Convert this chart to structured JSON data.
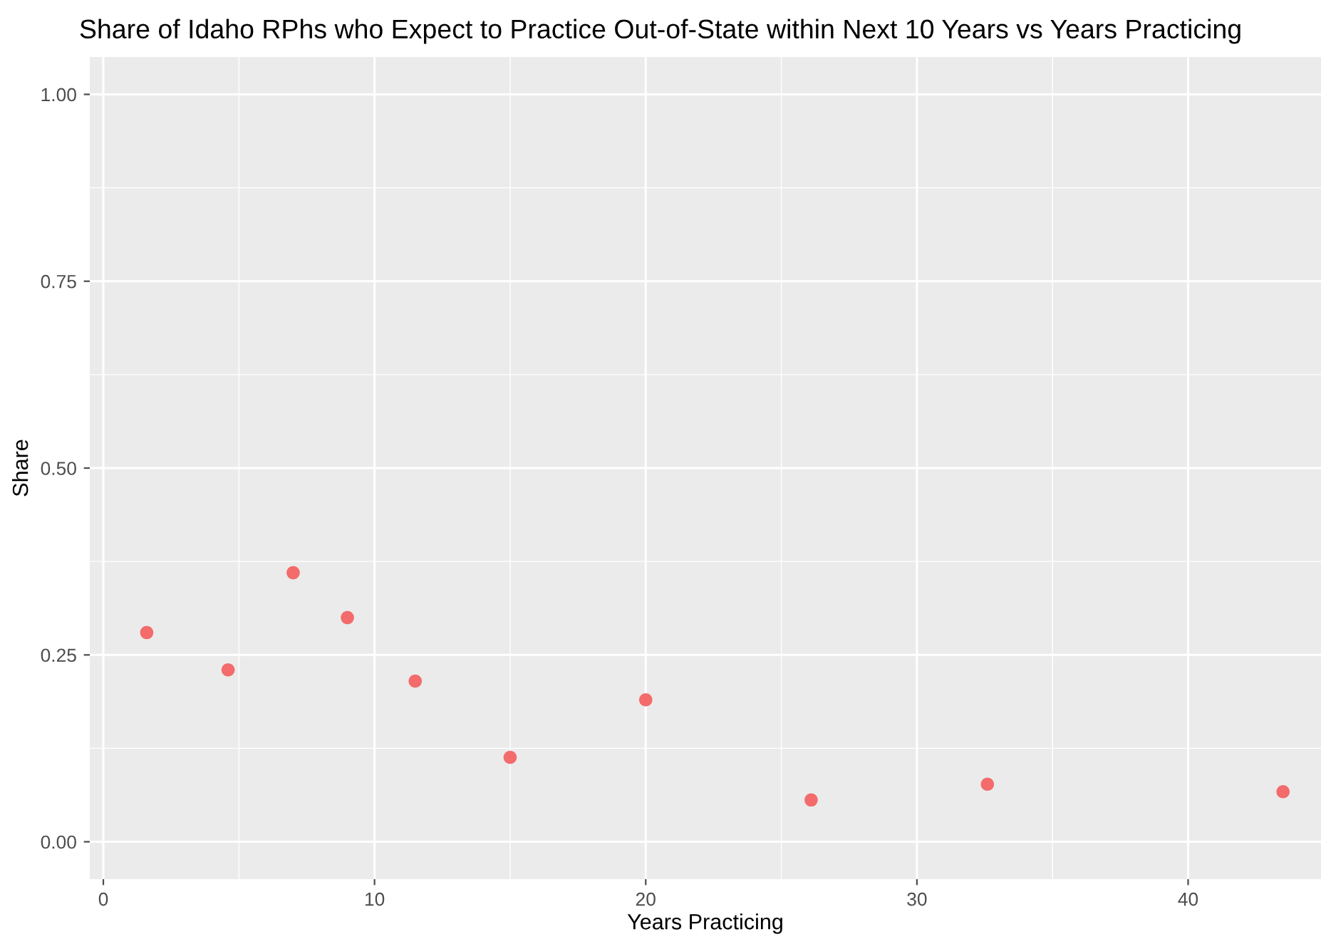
{
  "chart_data": {
    "type": "scatter",
    "title": "Share of Idaho RPhs who Expect to Practice Out-of-State within Next 10 Years vs Years Practicing",
    "xlabel": "Years Practicing",
    "ylabel": "Share",
    "x": [
      1.6,
      4.6,
      7.0,
      9.0,
      11.5,
      15.0,
      20.0,
      26.1,
      32.6,
      43.5
    ],
    "values": [
      0.28,
      0.23,
      0.36,
      0.3,
      0.215,
      0.113,
      0.19,
      0.056,
      0.077,
      0.067
    ],
    "color": "#f36b6b",
    "marker": "circle",
    "xlim": [
      -0.5,
      44.9
    ],
    "ylim": [
      -0.05,
      1.05
    ],
    "xticks": [
      0,
      10,
      20,
      30,
      40
    ],
    "yticks": [
      {
        "value": 0,
        "label": "0.00"
      },
      {
        "value": 0.25,
        "label": "0.25"
      },
      {
        "value": 0.5,
        "label": "0.50"
      },
      {
        "value": 0.75,
        "label": "0.75"
      },
      {
        "value": 1,
        "label": "1.00"
      }
    ],
    "grid": true
  }
}
